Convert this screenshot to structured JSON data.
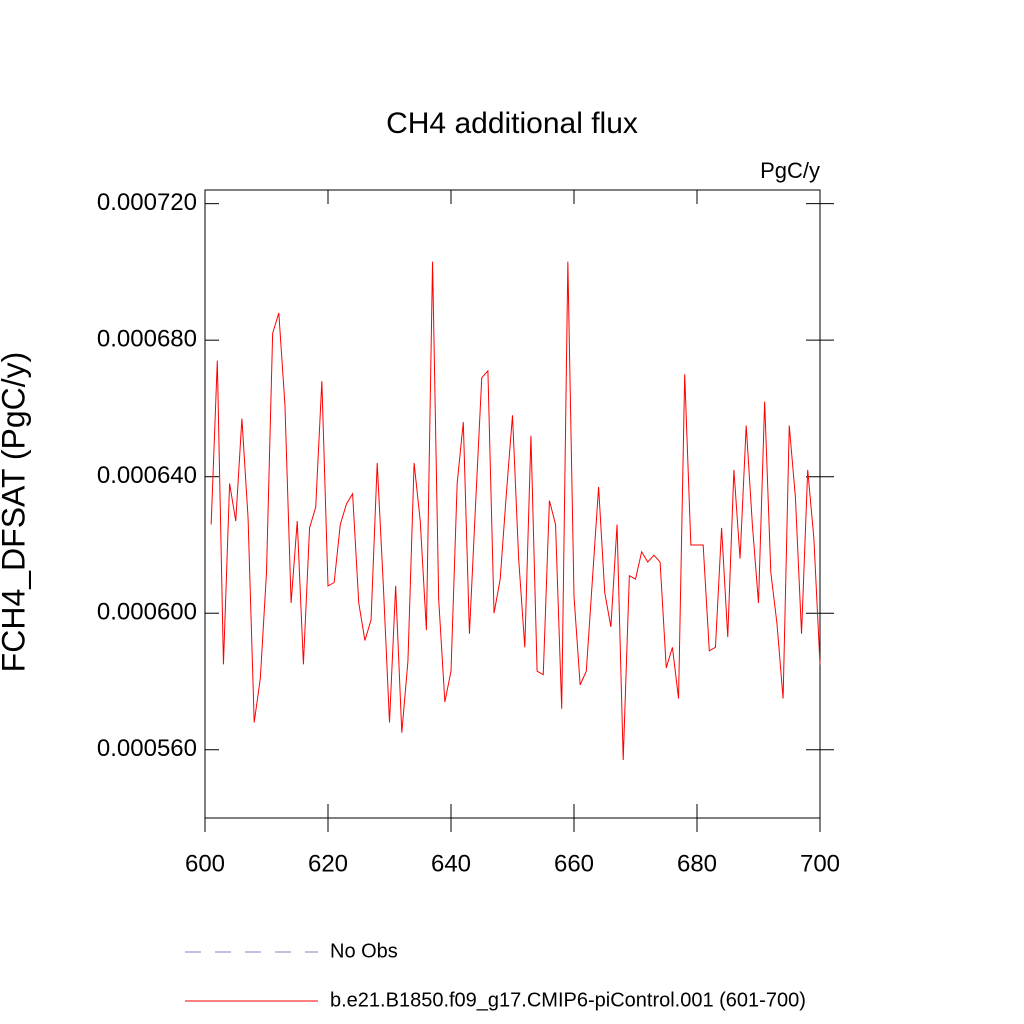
{
  "chart_data": {
    "type": "line",
    "title": "CH4 additional flux",
    "units": "PgC/y",
    "y_label": "FCH4_DFSAT  (PgC/y)",
    "x": [
      601,
      602,
      603,
      604,
      605,
      606,
      607,
      608,
      609,
      610,
      611,
      612,
      613,
      614,
      615,
      616,
      617,
      618,
      619,
      620,
      621,
      622,
      623,
      624,
      625,
      626,
      627,
      628,
      629,
      630,
      631,
      632,
      633,
      634,
      635,
      636,
      637,
      638,
      639,
      640,
      641,
      642,
      643,
      644,
      645,
      646,
      647,
      648,
      649,
      650,
      651,
      652,
      653,
      654,
      655,
      656,
      657,
      658,
      659,
      660,
      661,
      662,
      663,
      664,
      665,
      666,
      667,
      668,
      669,
      670,
      671,
      672,
      673,
      674,
      675,
      676,
      677,
      678,
      679,
      680,
      681,
      682,
      683,
      684,
      685,
      686,
      687,
      688,
      689,
      690,
      691,
      692,
      693,
      694,
      695,
      696,
      697,
      698,
      699,
      700
    ],
    "series": [
      {
        "name": "No Obs",
        "color": "#8080c0",
        "dashed": true,
        "values": [
          null,
          null,
          null,
          null,
          null,
          null,
          null,
          null,
          null,
          null,
          null,
          null,
          null,
          null,
          null,
          null,
          null,
          null,
          null,
          null,
          null,
          null,
          null,
          null,
          null,
          null,
          null,
          null,
          null,
          null,
          null,
          null,
          null,
          null,
          null,
          null,
          null,
          null,
          null,
          null,
          null,
          null,
          null,
          null,
          null,
          null,
          null,
          null,
          null,
          null,
          null,
          null,
          null,
          null,
          null,
          null,
          null,
          null,
          null,
          null,
          null,
          null,
          null,
          null,
          null,
          null,
          null,
          null,
          null,
          null,
          null,
          null,
          null,
          null,
          null,
          null,
          null,
          null,
          null,
          null,
          null,
          null,
          null,
          null,
          null,
          null,
          null,
          null,
          null,
          null,
          null,
          null,
          null,
          null,
          null,
          null,
          null,
          null,
          null,
          null
        ]
      },
      {
        "name": "b.e21.B1850.f09_g17.CMIP6-piControl.001 (601-700)",
        "color": "#ff0000",
        "dashed": false,
        "values": [
          0.000626,
          0.000674,
          0.000585,
          0.000638,
          0.000627,
          0.000657,
          0.000628,
          0.000568,
          0.000581,
          0.000612,
          0.000682,
          0.000688,
          0.000661,
          0.000603,
          0.000627,
          0.000585,
          0.000625,
          0.000631,
          0.000668,
          0.000608,
          0.000609,
          0.000626,
          0.000632,
          0.000635,
          0.000603,
          0.000592,
          0.000598,
          0.000644,
          0.000608,
          0.000568,
          0.000608,
          0.000565,
          0.000586,
          0.000644,
          0.000627,
          0.000595,
          0.000703,
          0.000604,
          0.000574,
          0.000583,
          0.000638,
          0.000656,
          0.000594,
          0.000632,
          0.000669,
          0.000671,
          0.0006,
          0.00061,
          0.000635,
          0.000658,
          0.000616,
          0.00059,
          0.000652,
          0.000583,
          0.000582,
          0.000633,
          0.000626,
          0.000572,
          0.000703,
          0.000605,
          0.000579,
          0.000583,
          0.00061,
          0.000637,
          0.000606,
          0.000596,
          0.000626,
          0.000557,
          0.000611,
          0.00061,
          0.000618,
          0.000615,
          0.000617,
          0.000615,
          0.000584,
          0.00059,
          0.000575,
          0.00067,
          0.00062,
          0.00062,
          0.00062,
          0.000589,
          0.00059,
          0.000625,
          0.000593,
          0.000642,
          0.000616,
          0.000655,
          0.000626,
          0.000603,
          0.000662,
          0.000612,
          0.000597,
          0.000575,
          0.000655,
          0.000634,
          0.000594,
          0.000642,
          0.000622,
          0.000585
        ]
      }
    ],
    "xlim": [
      600,
      700
    ],
    "xticks": [
      600,
      620,
      640,
      660,
      680,
      700
    ],
    "ylim": [
      0.00054,
      0.000724
    ],
    "yticks": [
      {
        "value": 0.00056,
        "label": "0.000560"
      },
      {
        "value": 0.0006,
        "label": "0.000600"
      },
      {
        "value": 0.00064,
        "label": "0.000640"
      },
      {
        "value": 0.00068,
        "label": "0.000680"
      },
      {
        "value": 0.00072,
        "label": "0.000720"
      }
    ]
  }
}
